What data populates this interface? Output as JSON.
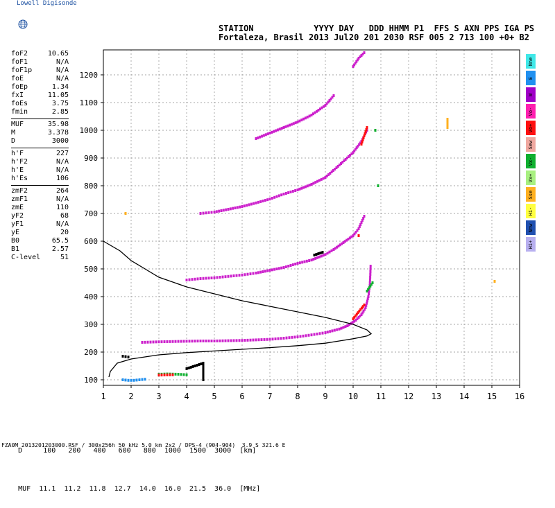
{
  "brand": "Lowell Digisonde",
  "header": {
    "line1": "STATION            YYYY DAY   DDD HHMM P1  FFS S AXN PPS IGA PS",
    "line2": "Fortaleza, Brasil 2013 Jul20 201 2030 RSF 005 2 713 100 +0+ B2"
  },
  "params": {
    "group1": [
      {
        "k": "foF2",
        "v": "10.65"
      },
      {
        "k": "foF1",
        "v": "N/A"
      },
      {
        "k": "foF1p",
        "v": "N/A"
      },
      {
        "k": "foE",
        "v": "N/A"
      },
      {
        "k": "foEp",
        "v": "1.34"
      },
      {
        "k": "fxI",
        "v": "11.05"
      },
      {
        "k": "foEs",
        "v": "3.75"
      },
      {
        "k": "fmin",
        "v": "2.85"
      }
    ],
    "group2": [
      {
        "k": "MUF",
        "v": "35.98"
      },
      {
        "k": "M",
        "v": "3.378"
      },
      {
        "k": "D",
        "v": "3000"
      }
    ],
    "group3": [
      {
        "k": "h'F",
        "v": "227"
      },
      {
        "k": "h'F2",
        "v": "N/A"
      },
      {
        "k": "h'E",
        "v": "N/A"
      },
      {
        "k": "h'Es",
        "v": "106"
      }
    ],
    "group4": [
      {
        "k": "zmF2",
        "v": "264"
      },
      {
        "k": "zmF1",
        "v": "N/A"
      },
      {
        "k": "zmE",
        "v": "110"
      },
      {
        "k": "yF2",
        "v": "68"
      },
      {
        "k": "yF1",
        "v": "N/A"
      },
      {
        "k": "yE",
        "v": "20"
      },
      {
        "k": "B0",
        "v": "65.5"
      },
      {
        "k": "B1",
        "v": "2.57"
      },
      {
        "k": "C-level",
        "v": "51"
      }
    ]
  },
  "legend": [
    {
      "label": "Nne",
      "color": "#40e8e8"
    },
    {
      "label": "E",
      "color": "#2090f0"
    },
    {
      "label": "W",
      "color": "#a000c8"
    },
    {
      "label": "Vo-",
      "color": "#ff20b0"
    },
    {
      "label": "Vo+",
      "color": "#ff1010"
    },
    {
      "label": "Sew",
      "color": "#f0a8a0"
    },
    {
      "label": "Vx-",
      "color": "#10b030"
    },
    {
      "label": "Vx+",
      "color": "#a8f080"
    },
    {
      "label": "Sse",
      "color": "#ffb020"
    },
    {
      "label": "Hi-",
      "color": "#ffff40"
    },
    {
      "label": "Nnw",
      "color": "#2050b0"
    },
    {
      "label": "Hi+",
      "color": "#b8b0f0"
    }
  ],
  "muf_table": {
    "D_label": "D",
    "D_values": [
      "100",
      "200",
      "400",
      "600",
      "800",
      "1000",
      "1500",
      "3000"
    ],
    "D_unit": "[km]",
    "MUF_label": "MUF",
    "MUF_values": [
      "11.1",
      "11.2",
      "11.8",
      "12.7",
      "14.0",
      "16.0",
      "21.5",
      "36.0"
    ],
    "MUF_unit": "[MHz]"
  },
  "footer": "FZA0M_2013201203000.RSF / 300x256h 50 kHz 5.0 km 2x2 / DPS-4 (904-904)  3.9 S 321.6 E",
  "chart_data": {
    "type": "scatter",
    "xlim": [
      1,
      16
    ],
    "ylim": [
      80,
      1290
    ],
    "xticks": [
      1,
      2,
      3,
      4,
      5,
      6,
      7,
      8,
      9,
      10,
      11,
      12,
      13,
      14,
      15,
      16
    ],
    "yticks": [
      100,
      200,
      300,
      400,
      500,
      600,
      700,
      800,
      900,
      1000,
      1100,
      1200
    ],
    "grid": true,
    "series": [
      {
        "color": "#cc20cc",
        "points": [
          [
            2.4,
            235
          ],
          [
            3,
            237
          ],
          [
            3.5,
            238
          ],
          [
            4,
            239
          ],
          [
            4.5,
            240
          ],
          [
            5,
            240
          ],
          [
            5.5,
            241
          ],
          [
            6,
            242
          ],
          [
            6.5,
            244
          ],
          [
            7,
            246
          ],
          [
            7.5,
            250
          ],
          [
            8,
            255
          ],
          [
            8.5,
            262
          ],
          [
            9,
            270
          ],
          [
            9.5,
            283
          ],
          [
            9.8,
            295
          ],
          [
            10.1,
            315
          ],
          [
            10.3,
            335
          ],
          [
            10.45,
            360
          ],
          [
            10.55,
            400
          ],
          [
            10.6,
            440
          ],
          [
            10.62,
            480
          ],
          [
            10.63,
            510
          ]
        ]
      },
      {
        "color": "#cc20cc",
        "points": [
          [
            4,
            460
          ],
          [
            4.5,
            465
          ],
          [
            5,
            468
          ],
          [
            5.5,
            473
          ],
          [
            6,
            478
          ],
          [
            6.5,
            485
          ],
          [
            7,
            495
          ],
          [
            7.5,
            505
          ],
          [
            8,
            520
          ],
          [
            8.5,
            532
          ],
          [
            9,
            552
          ],
          [
            9.3,
            570
          ],
          [
            10,
            620
          ],
          [
            10.2,
            645
          ],
          [
            10.4,
            690
          ]
        ]
      },
      {
        "color": "#cc20cc",
        "points": [
          [
            4.5,
            700
          ],
          [
            5,
            705
          ],
          [
            5.5,
            715
          ],
          [
            6,
            725
          ],
          [
            6.5,
            738
          ],
          [
            7,
            752
          ],
          [
            7.5,
            770
          ],
          [
            8,
            785
          ],
          [
            8.5,
            805
          ],
          [
            9,
            830
          ],
          [
            9.4,
            865
          ],
          [
            10,
            920
          ],
          [
            10.3,
            960
          ],
          [
            10.5,
            1000
          ]
        ]
      },
      {
        "color": "#cc20cc",
        "points": [
          [
            6.5,
            970
          ],
          [
            7,
            990
          ],
          [
            8,
            1030
          ],
          [
            8.5,
            1055
          ],
          [
            9,
            1090
          ],
          [
            9.3,
            1125
          ],
          [
            10,
            1230
          ],
          [
            10.2,
            1260
          ],
          [
            10.4,
            1280
          ]
        ]
      },
      {
        "color": "#2090f0",
        "points": [
          [
            1.7,
            100
          ],
          [
            1.9,
            98
          ],
          [
            2.1,
            98
          ],
          [
            2.3,
            100
          ],
          [
            2.5,
            102
          ]
        ]
      },
      {
        "color": "#10b030",
        "points": [
          [
            3,
            120
          ],
          [
            3.3,
            121
          ],
          [
            3.7,
            120
          ],
          [
            4,
            118
          ],
          [
            10.5,
            420
          ],
          [
            10.7,
            450
          ],
          [
            10.8,
            1000
          ],
          [
            10.9,
            800
          ]
        ]
      },
      {
        "color": "#ff1010",
        "points": [
          [
            3,
            117
          ],
          [
            3.5,
            118
          ],
          [
            10,
            320
          ],
          [
            10.4,
            370
          ],
          [
            10.2,
            620
          ],
          [
            10.3,
            950
          ],
          [
            10.5,
            1010
          ]
        ]
      },
      {
        "color": "#000000",
        "points": [
          [
            1.7,
            185
          ],
          [
            1.9,
            182
          ],
          [
            8.6,
            550
          ],
          [
            8.9,
            560
          ],
          [
            4,
            140
          ],
          [
            4.6,
            160
          ],
          [
            4.6,
            100
          ]
        ]
      },
      {
        "color": "#ffb020",
        "points": [
          [
            13.4,
            1040
          ],
          [
            13.4,
            1010
          ],
          [
            15.1,
            455
          ],
          [
            1.8,
            700
          ]
        ]
      }
    ],
    "profile": [
      [
        1.2,
        110
      ],
      [
        1.25,
        130
      ],
      [
        1.5,
        160
      ],
      [
        2,
        175
      ],
      [
        3,
        190
      ],
      [
        4,
        198
      ],
      [
        5,
        204
      ],
      [
        6,
        210
      ],
      [
        7,
        216
      ],
      [
        8,
        223
      ],
      [
        9,
        232
      ],
      [
        9.5,
        240
      ],
      [
        10,
        248
      ],
      [
        10.5,
        258
      ],
      [
        10.65,
        266
      ],
      [
        10.5,
        280
      ],
      [
        10,
        300
      ],
      [
        9,
        325
      ],
      [
        8,
        345
      ],
      [
        7,
        365
      ],
      [
        6,
        385
      ],
      [
        5,
        410
      ],
      [
        4,
        435
      ],
      [
        3,
        470
      ],
      [
        2.5,
        500
      ],
      [
        2,
        530
      ],
      [
        1.6,
        565
      ],
      [
        1,
        600
      ]
    ]
  }
}
